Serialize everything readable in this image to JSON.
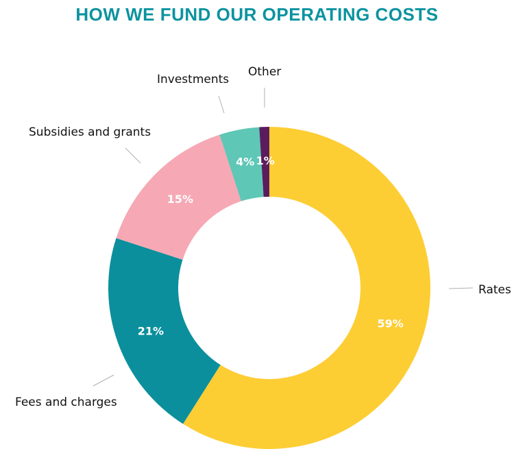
{
  "chart_data": {
    "type": "pie",
    "variant": "donut",
    "title": "HOW WE FUND OUR OPERATING COSTS",
    "title_color": "#0b939f",
    "slices": [
      {
        "label": "Rates",
        "value": 59,
        "value_label": "59%",
        "color": "#fdcd34"
      },
      {
        "label": "Fees and charges",
        "value": 21,
        "value_label": "21%",
        "color": "#0b8f9c"
      },
      {
        "label": "Subsidies and grants",
        "value": 15,
        "value_label": "15%",
        "color": "#f6a8b4"
      },
      {
        "label": "Investments",
        "value": 4,
        "value_label": "4%",
        "color": "#5ec7b6"
      },
      {
        "label": "Other",
        "value": 1,
        "value_label": "1%",
        "color": "#5b1c5e"
      }
    ]
  }
}
